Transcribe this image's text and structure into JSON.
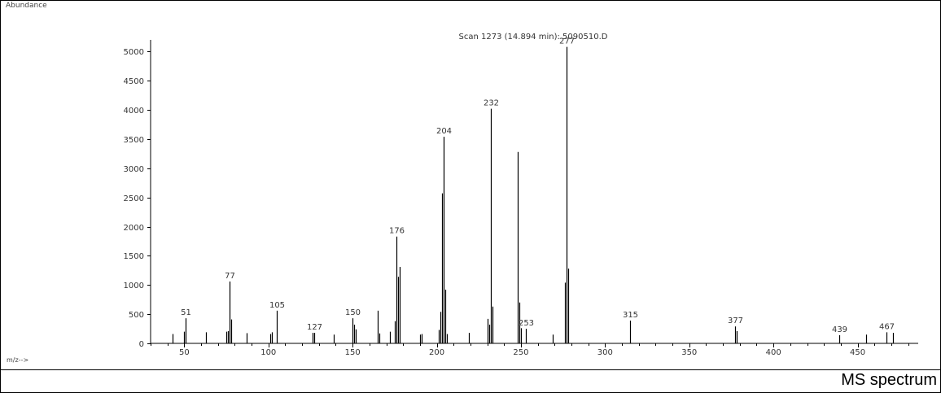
{
  "caption": "MS spectrum",
  "chart_data": {
    "type": "bar",
    "title": "Scan 1273 (14.894 min): 5090510.D",
    "ylabel": "Abundance",
    "xlabel": "m/z-->",
    "xlim": [
      30,
      486
    ],
    "ylim": [
      0,
      5200
    ],
    "xticks": [
      50,
      100,
      150,
      200,
      250,
      300,
      350,
      400,
      450
    ],
    "yticks": [
      0,
      500,
      1000,
      1500,
      2000,
      2500,
      3000,
      3500,
      4000,
      4500,
      5000
    ],
    "grid": false,
    "color": "#000000",
    "peaks": [
      {
        "mz": 43,
        "abundance": 160
      },
      {
        "mz": 50,
        "abundance": 200
      },
      {
        "mz": 51,
        "abundance": 430,
        "label": "51"
      },
      {
        "mz": 63,
        "abundance": 190
      },
      {
        "mz": 75,
        "abundance": 200
      },
      {
        "mz": 76,
        "abundance": 210
      },
      {
        "mz": 77,
        "abundance": 1060,
        "label": "77"
      },
      {
        "mz": 78,
        "abundance": 410
      },
      {
        "mz": 87,
        "abundance": 175
      },
      {
        "mz": 101,
        "abundance": 160
      },
      {
        "mz": 102,
        "abundance": 190
      },
      {
        "mz": 105,
        "abundance": 560,
        "label": "105"
      },
      {
        "mz": 126,
        "abundance": 180
      },
      {
        "mz": 127,
        "abundance": 180,
        "label": "127"
      },
      {
        "mz": 139,
        "abundance": 150
      },
      {
        "mz": 150,
        "abundance": 430,
        "label": "150"
      },
      {
        "mz": 151,
        "abundance": 320
      },
      {
        "mz": 152,
        "abundance": 240
      },
      {
        "mz": 165,
        "abundance": 560
      },
      {
        "mz": 166,
        "abundance": 170
      },
      {
        "mz": 172,
        "abundance": 200
      },
      {
        "mz": 175,
        "abundance": 380
      },
      {
        "mz": 176,
        "abundance": 1830,
        "label": "176"
      },
      {
        "mz": 177,
        "abundance": 1140
      },
      {
        "mz": 178,
        "abundance": 1310
      },
      {
        "mz": 190,
        "abundance": 150
      },
      {
        "mz": 191,
        "abundance": 160
      },
      {
        "mz": 201,
        "abundance": 230
      },
      {
        "mz": 202,
        "abundance": 540
      },
      {
        "mz": 203,
        "abundance": 2570
      },
      {
        "mz": 204,
        "abundance": 3540,
        "label": "204"
      },
      {
        "mz": 205,
        "abundance": 920
      },
      {
        "mz": 206,
        "abundance": 160
      },
      {
        "mz": 219,
        "abundance": 180
      },
      {
        "mz": 230,
        "abundance": 420
      },
      {
        "mz": 231,
        "abundance": 320
      },
      {
        "mz": 232,
        "abundance": 4020,
        "label": "232"
      },
      {
        "mz": 233,
        "abundance": 630
      },
      {
        "mz": 248,
        "abundance": 3280
      },
      {
        "mz": 249,
        "abundance": 700
      },
      {
        "mz": 250,
        "abundance": 260
      },
      {
        "mz": 253,
        "abundance": 250,
        "label": "253"
      },
      {
        "mz": 269,
        "abundance": 150
      },
      {
        "mz": 276,
        "abundance": 1040
      },
      {
        "mz": 277,
        "abundance": 5080,
        "label": "277"
      },
      {
        "mz": 278,
        "abundance": 1280
      },
      {
        "mz": 315,
        "abundance": 390,
        "label": "315"
      },
      {
        "mz": 377,
        "abundance": 290,
        "label": "377"
      },
      {
        "mz": 378,
        "abundance": 210
      },
      {
        "mz": 439,
        "abundance": 140,
        "label": "439"
      },
      {
        "mz": 455,
        "abundance": 150
      },
      {
        "mz": 467,
        "abundance": 190,
        "label": "467"
      },
      {
        "mz": 471,
        "abundance": 180
      }
    ]
  }
}
